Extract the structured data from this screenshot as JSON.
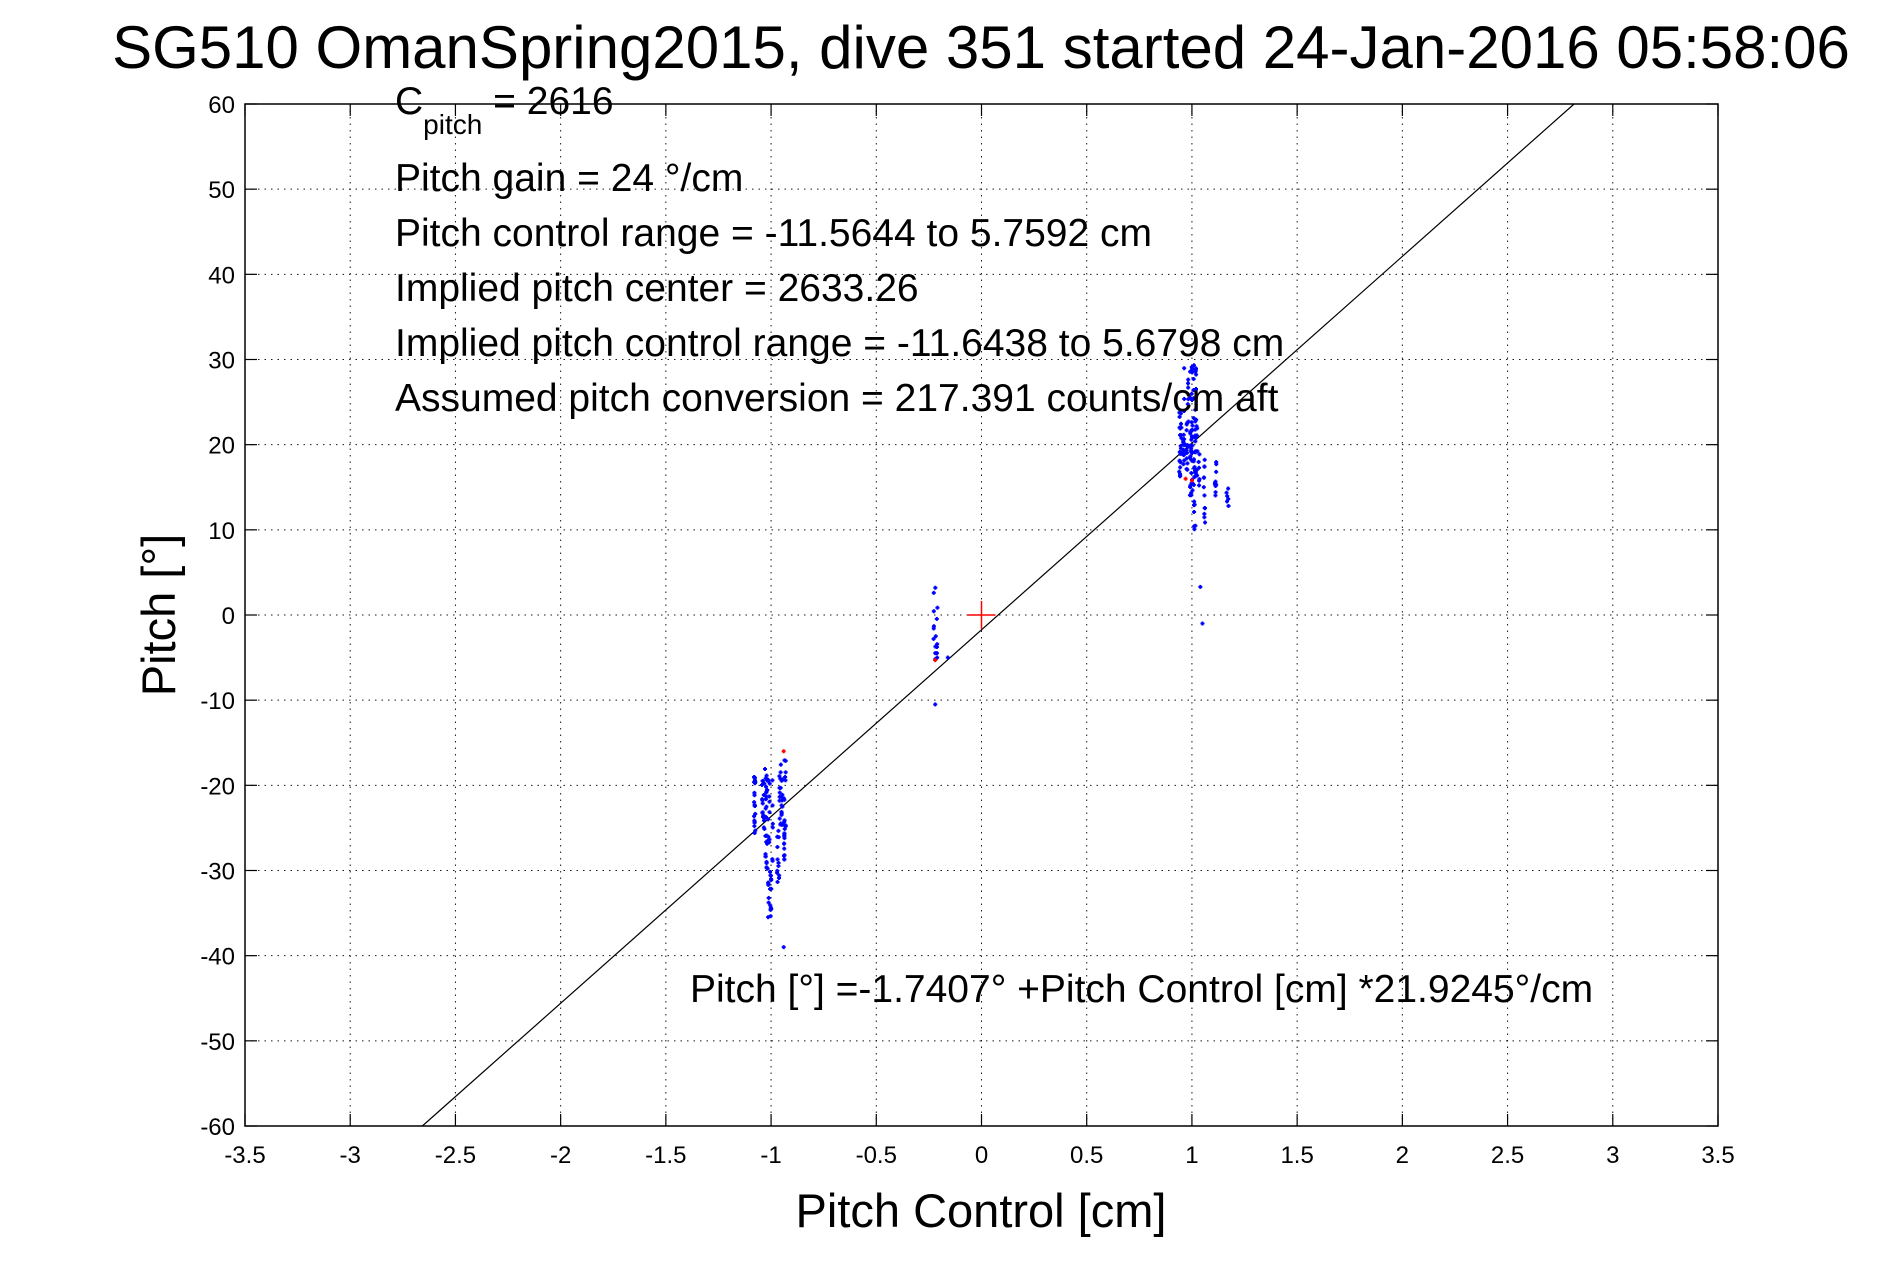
{
  "chart_data": {
    "type": "scatter",
    "title": "SG510 OmanSpring2015, dive 351 started 24-Jan-2016 05:58:06",
    "xlabel": "Pitch Control [cm]",
    "ylabel": "Pitch [°]",
    "xlim": [
      -3.5,
      3.5
    ],
    "ylim": [
      -60,
      60
    ],
    "xticks": [
      -3.5,
      -3,
      -2.5,
      -2,
      -1.5,
      -1,
      -0.5,
      0,
      0.5,
      1,
      1.5,
      2,
      2.5,
      3,
      3.5
    ],
    "xtick_labels": [
      "-3.5",
      "-3",
      "-2.5",
      "-2",
      "-1.5",
      "-1",
      "-0.5",
      "0",
      "0.5",
      "1",
      "1.5",
      "2",
      "2.5",
      "3",
      "3.5"
    ],
    "yticks": [
      -60,
      -50,
      -40,
      -30,
      -20,
      -10,
      0,
      10,
      20,
      30,
      40,
      50,
      60
    ],
    "ytick_labels": [
      "-60",
      "-50",
      "-40",
      "-30",
      "-20",
      "-10",
      "0",
      "10",
      "20",
      "30",
      "40",
      "50",
      "60"
    ],
    "grid": true,
    "fit_line": {
      "intercept": -1.7407,
      "slope": 21.9245
    },
    "center_marker": {
      "x": 0,
      "y": 0,
      "color": "#ff0000"
    },
    "annotations": {
      "c_pitch_main": "C",
      "c_pitch_sub": "pitch",
      "c_pitch_value": " = 2616",
      "pitch_gain": "Pitch gain = 24 °/cm",
      "pitch_control_range": "Pitch control range = -11.5644 to 5.7592 cm",
      "implied_pitch_center": "Implied pitch center = 2633.26",
      "implied_pitch_control_range": "Implied pitch control range = -11.6438 to 5.6798 cm",
      "assumed_pitch_conversion": "Assumed pitch conversion = 217.391 counts/cm aft",
      "fit_equation": "Pitch [°] =-1.7407° +Pitch Control [cm] *21.9245°/cm"
    },
    "series": [
      {
        "color": "#0000ff",
        "clusters": [
          {
            "x_min": -1.08,
            "x_max": -1.03,
            "y_min": -26,
            "y_max": -19,
            "n": 40
          },
          {
            "x_min": -1.04,
            "x_max": -0.98,
            "y_min": -30,
            "y_max": -18,
            "n": 45
          },
          {
            "x_min": -1.02,
            "x_max": -0.99,
            "y_min": -35.5,
            "y_max": -30,
            "n": 20
          },
          {
            "x_min": -0.98,
            "x_max": -0.96,
            "y_min": -32,
            "y_max": -25,
            "n": 12
          },
          {
            "x_min": -0.97,
            "x_max": -0.93,
            "y_min": -25,
            "y_max": -17,
            "n": 35
          },
          {
            "x_min": -0.95,
            "x_max": -0.92,
            "y_min": -29,
            "y_max": -24,
            "n": 14
          },
          {
            "x_min": -0.23,
            "x_max": -0.21,
            "y_min": -5.5,
            "y_max": 3.3,
            "n": 16
          },
          {
            "x_min": 0.93,
            "x_max": 0.98,
            "y_min": 16,
            "y_max": 24,
            "n": 40
          },
          {
            "x_min": 0.95,
            "x_max": 1.02,
            "y_min": 18,
            "y_max": 29.5,
            "n": 55
          },
          {
            "x_min": 0.97,
            "x_max": 1.05,
            "y_min": 14,
            "y_max": 23,
            "n": 40
          },
          {
            "x_min": 1.0,
            "x_max": 1.08,
            "y_min": 10,
            "y_max": 19,
            "n": 30
          },
          {
            "x_min": 1.1,
            "x_max": 1.13,
            "y_min": 13,
            "y_max": 18.5,
            "n": 10
          },
          {
            "x_min": 1.16,
            "x_max": 1.18,
            "y_min": 12,
            "y_max": 16,
            "n": 6
          }
        ],
        "points": [
          {
            "x": -0.94,
            "y": -39
          },
          {
            "x": -0.22,
            "y": -10.5
          },
          {
            "x": -0.16,
            "y": -5
          },
          {
            "x": 1.04,
            "y": 3.3
          },
          {
            "x": 1.05,
            "y": -1
          }
        ]
      },
      {
        "color": "#ff0000",
        "points": [
          {
            "x": -0.94,
            "y": -16
          },
          {
            "x": -0.22,
            "y": -5.3
          },
          {
            "x": 0.97,
            "y": 16
          },
          {
            "x": 1.0,
            "y": 15.8
          }
        ]
      }
    ]
  }
}
